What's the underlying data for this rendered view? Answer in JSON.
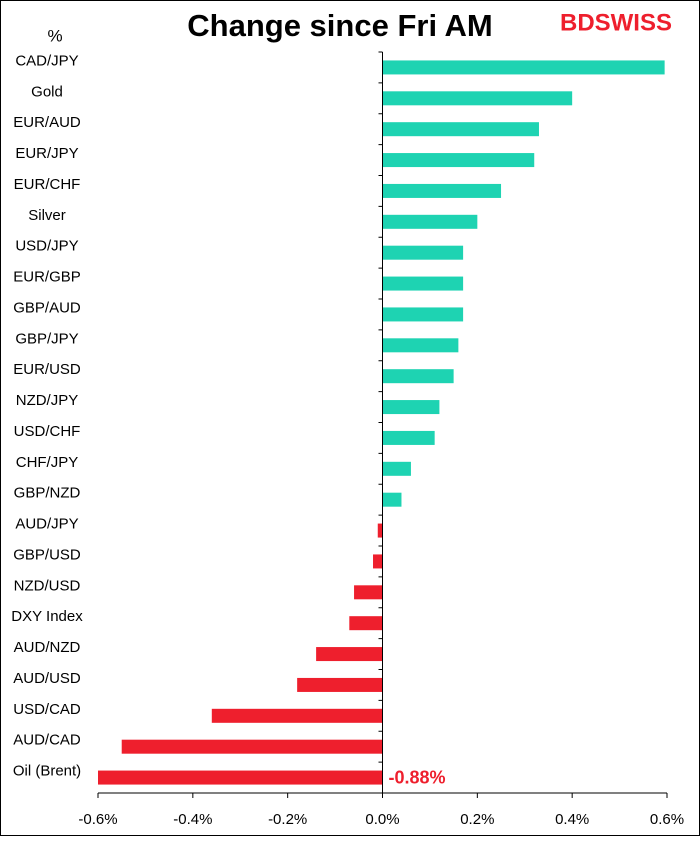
{
  "chart_data": {
    "type": "hbar",
    "title": "Change since Fri AM",
    "unit_label": "%",
    "brand": "BDSWISS",
    "categories": [
      "CAD/JPY",
      "Gold",
      "EUR/AUD",
      "EUR/JPY",
      "EUR/CHF",
      "Silver",
      "USD/JPY",
      "EUR/GBP",
      "GBP/AUD",
      "GBP/JPY",
      "EUR/USD",
      "NZD/JPY",
      "USD/CHF",
      "CHF/JPY",
      "GBP/NZD",
      "AUD/JPY",
      "GBP/USD",
      "NZD/USD",
      "DXY Index",
      "AUD/NZD",
      "AUD/USD",
      "USD/CAD",
      "AUD/CAD",
      "Oil (Brent)"
    ],
    "values": [
      0.595,
      0.4,
      0.33,
      0.32,
      0.25,
      0.2,
      0.17,
      0.17,
      0.17,
      0.16,
      0.15,
      0.12,
      0.11,
      0.06,
      0.04,
      -0.01,
      -0.02,
      -0.06,
      -0.07,
      -0.14,
      -0.18,
      -0.36,
      -0.55,
      -0.88
    ],
    "value_labels": [
      null,
      null,
      null,
      null,
      null,
      null,
      null,
      null,
      null,
      null,
      null,
      null,
      null,
      null,
      null,
      null,
      null,
      null,
      null,
      null,
      null,
      null,
      null,
      "-0.88%"
    ],
    "positive_color": "#1ed3b2",
    "negative_color": "#ee1f2d",
    "xlim": [
      -0.6,
      0.6
    ],
    "xticks": [
      {
        "value": -0.6,
        "label": "-0.6%"
      },
      {
        "value": -0.4,
        "label": "-0.4%"
      },
      {
        "value": -0.2,
        "label": "-0.2%"
      },
      {
        "value": 0,
        "label": "0.0%"
      },
      {
        "value": 0.2,
        "label": "0.2%"
      },
      {
        "value": 0.4,
        "label": "0.4%"
      },
      {
        "value": 0.6,
        "label": "0.6%"
      }
    ],
    "grid": false
  }
}
